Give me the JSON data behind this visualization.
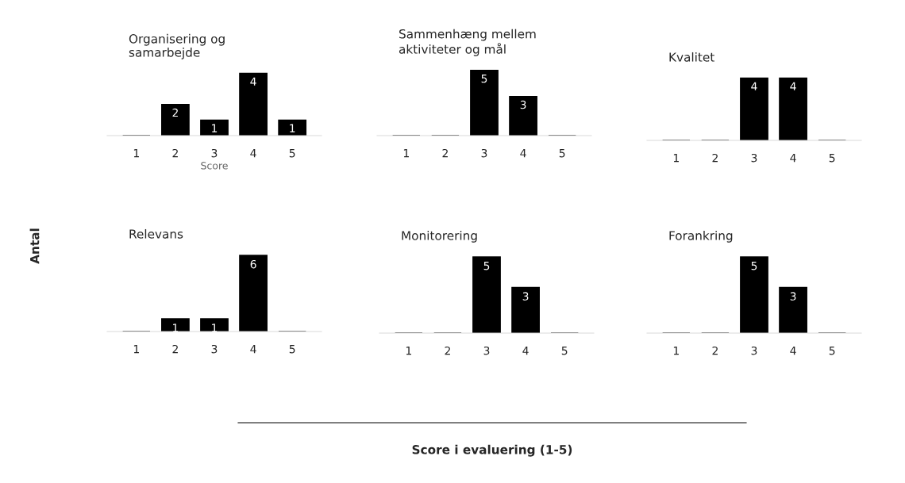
{
  "chart_data": [
    {
      "type": "bar",
      "title": "Organisering og\nsamarbejde",
      "xlabel": "Score",
      "categories": [
        "1",
        "2",
        "3",
        "4",
        "5"
      ],
      "values": [
        0,
        2,
        1,
        4,
        1
      ],
      "value_labels": [
        null,
        "2",
        "1",
        "4",
        "1"
      ],
      "color": "#000000",
      "tick_labels": "x",
      "grid": false
    },
    {
      "type": "bar",
      "title": "Sammenhæng mellem\naktiviteter og mål",
      "categories": [
        "1",
        "2",
        "3",
        "4",
        "5"
      ],
      "values": [
        0,
        0,
        5,
        3,
        0
      ],
      "value_labels": [
        null,
        null,
        "5",
        "3",
        null
      ],
      "color": "#000000",
      "tick_labels": "x",
      "grid": false
    },
    {
      "type": "bar",
      "title": "Kvalitet",
      "categories": [
        "1",
        "2",
        "3",
        "4",
        "5"
      ],
      "values": [
        0,
        0,
        4,
        4,
        0
      ],
      "value_labels": [
        null,
        null,
        "4",
        "4",
        null
      ],
      "color": "#000000",
      "tick_labels": "x",
      "grid": false
    },
    {
      "type": "bar",
      "title": "Relevans",
      "categories": [
        "1",
        "2",
        "3",
        "4",
        "5"
      ],
      "values": [
        0,
        1,
        1,
        6,
        0
      ],
      "value_labels": [
        null,
        "1",
        "1",
        "6",
        null
      ],
      "color": "#000000",
      "tick_labels": "x",
      "grid": false
    },
    {
      "type": "bar",
      "title": "Monitorering",
      "categories": [
        "1",
        "2",
        "3",
        "4",
        "5"
      ],
      "values": [
        0,
        0,
        5,
        3,
        0
      ],
      "value_labels": [
        null,
        null,
        "5",
        "3",
        null
      ],
      "color": "#000000",
      "tick_labels": "x",
      "grid": false
    },
    {
      "type": "bar",
      "title": "Forankring",
      "categories": [
        "1",
        "2",
        "3",
        "4",
        "5"
      ],
      "values": [
        0,
        0,
        5,
        3,
        0
      ],
      "value_labels": [
        null,
        null,
        "5",
        "3",
        null
      ],
      "color": "#000000",
      "tick_labels": "x",
      "grid": false
    },
    {
      "type": "other",
      "xlabel": "Score i evaluering (1-5)",
      "ylabel": "Antal"
    }
  ]
}
